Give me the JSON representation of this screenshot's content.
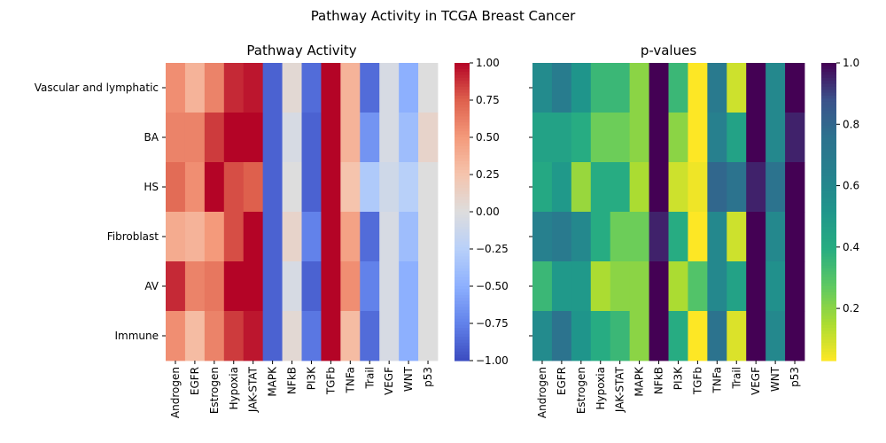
{
  "figure": {
    "suptitle": "Pathway Activity in TCGA Breast Cancer"
  },
  "chart_data": [
    {
      "type": "heatmap",
      "title": "Pathway Activity",
      "xlabel": "",
      "ylabel": "",
      "rows": [
        "Vascular and lymphatic",
        "BA",
        "HS",
        "Fibroblast",
        "AV",
        "Immune"
      ],
      "columns": [
        "Androgen",
        "EGFR",
        "Estrogen",
        "Hypoxia",
        "JAK-STAT",
        "MAPK",
        "NFkB",
        "PI3K",
        "TGFb",
        "TNFa",
        "Trail",
        "VEGF",
        "WNT",
        "p53"
      ],
      "values": [
        [
          0.55,
          0.35,
          0.6,
          0.9,
          0.95,
          -0.9,
          0.05,
          -0.85,
          1.0,
          0.35,
          -0.85,
          -0.05,
          -0.5,
          0.0
        ],
        [
          0.6,
          0.6,
          0.85,
          1.0,
          1.0,
          -0.9,
          -0.05,
          -0.9,
          1.0,
          0.35,
          -0.65,
          -0.05,
          -0.4,
          0.1
        ],
        [
          0.7,
          0.55,
          1.0,
          0.8,
          0.75,
          -0.9,
          0.0,
          -0.9,
          1.0,
          0.25,
          -0.3,
          -0.1,
          -0.25,
          0.0
        ],
        [
          0.4,
          0.35,
          0.5,
          0.8,
          1.0,
          -0.9,
          0.1,
          -0.75,
          1.0,
          0.45,
          -0.85,
          -0.05,
          -0.4,
          0.0
        ],
        [
          0.9,
          0.6,
          0.65,
          1.0,
          1.0,
          -0.9,
          -0.05,
          -0.9,
          1.0,
          0.55,
          -0.75,
          -0.05,
          -0.5,
          0.0
        ],
        [
          0.55,
          0.3,
          0.6,
          0.85,
          0.95,
          -0.9,
          0.05,
          -0.8,
          1.0,
          0.3,
          -0.85,
          -0.05,
          -0.5,
          0.0
        ]
      ],
      "colormap": "coolwarm",
      "vmin": -1.0,
      "vmax": 1.0,
      "colorbar_ticks": [
        -1.0,
        -0.75,
        -0.5,
        -0.25,
        0.0,
        0.25,
        0.5,
        0.75,
        1.0
      ],
      "colorbar_tick_labels": [
        "−1.00",
        "−0.75",
        "−0.50",
        "−0.25",
        "0.00",
        "0.25",
        "0.50",
        "0.75",
        "1.00"
      ]
    },
    {
      "type": "heatmap",
      "title": "p-values",
      "xlabel": "",
      "ylabel": "",
      "rows": [
        "Vascular and lymphatic",
        "BA",
        "HS",
        "Fibroblast",
        "AV",
        "Immune"
      ],
      "columns": [
        "Androgen",
        "EGFR",
        "Estrogen",
        "Hypoxia",
        "JAK-STAT",
        "MAPK",
        "NFkB",
        "PI3K",
        "TGFb",
        "TNFa",
        "Trail",
        "VEGF",
        "WNT",
        "p53"
      ],
      "values": [
        [
          0.58,
          0.68,
          0.52,
          0.35,
          0.35,
          0.2,
          1.0,
          0.35,
          0.03,
          0.7,
          0.1,
          1.0,
          0.6,
          1.0
        ],
        [
          0.45,
          0.45,
          0.4,
          0.25,
          0.25,
          0.2,
          1.0,
          0.2,
          0.03,
          0.65,
          0.45,
          1.0,
          0.6,
          0.95
        ],
        [
          0.42,
          0.5,
          0.18,
          0.4,
          0.4,
          0.15,
          1.0,
          0.1,
          0.05,
          0.8,
          0.75,
          0.95,
          0.75,
          1.0
        ],
        [
          0.65,
          0.7,
          0.6,
          0.4,
          0.25,
          0.25,
          0.95,
          0.4,
          0.03,
          0.6,
          0.1,
          1.0,
          0.6,
          1.0
        ],
        [
          0.35,
          0.5,
          0.5,
          0.15,
          0.2,
          0.2,
          1.0,
          0.15,
          0.3,
          0.6,
          0.45,
          1.0,
          0.55,
          1.0
        ],
        [
          0.58,
          0.75,
          0.52,
          0.4,
          0.35,
          0.2,
          1.0,
          0.4,
          0.03,
          0.75,
          0.08,
          1.0,
          0.6,
          1.0
        ]
      ],
      "colormap": "viridis_r",
      "vmin": 0.03,
      "vmax": 1.0,
      "colorbar_ticks": [
        0.2,
        0.4,
        0.6,
        0.8,
        1.0
      ],
      "colorbar_tick_labels": [
        "0.2",
        "0.4",
        "0.6",
        "0.8",
        "1.0"
      ]
    }
  ]
}
